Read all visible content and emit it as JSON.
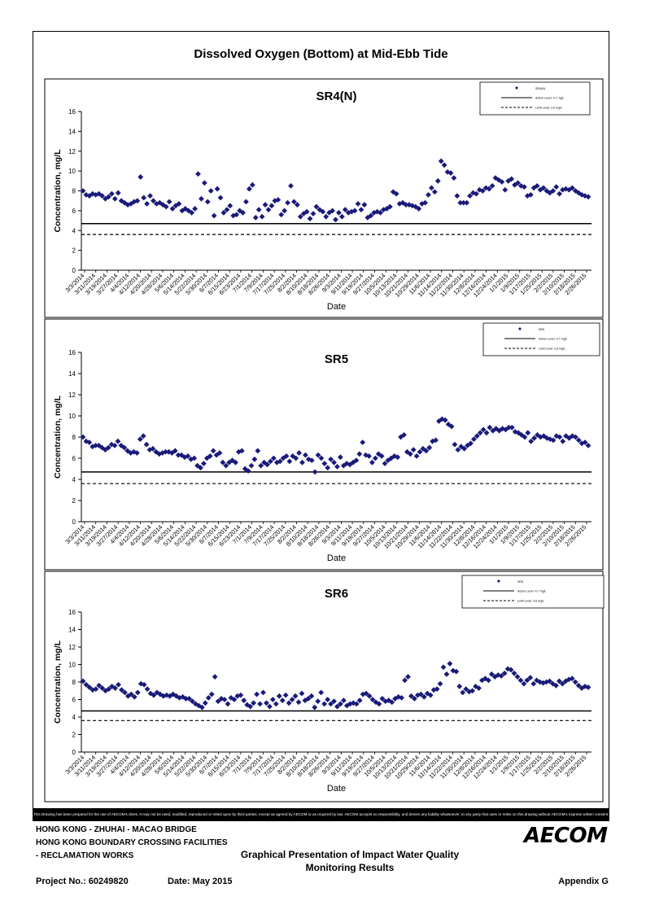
{
  "page": {
    "title": "Dissolved Oxygen (Bottom) at Mid-Ebb Tide",
    "disclaimer": "This Drawing has been prepared for the use of AECOM's client. It may not be used, modified, reproduced or relied upon by third parties, except as agreed by AECOM or as required by law. AECOM accepts no responsibility, and denies any liability whatsoever, to any party that uses or relies on this drawing without AECOM's express written consent.",
    "footer": {
      "line1": "HONG KONG - ZHUHAI - MACAO BRIDGE",
      "line2": "HONG KONG BOUNDARY CROSSING FACILITIES",
      "line3": "- RECLAMATION WORKS",
      "center1": "Graphical Presentation of Impact Water Quality",
      "center2": "Monitoring Results",
      "project": "Project No.: 60249820",
      "date": "Date: May 2015",
      "appendix": "Appendix G",
      "logo": "AECOM"
    }
  },
  "chart_data": [
    {
      "type": "scatter",
      "title": "SR4(N)",
      "xlabel": "Date",
      "ylabel": "Concentration, mg/L",
      "ylim": [
        0,
        16
      ],
      "yticks": [
        0,
        2,
        4,
        6,
        8,
        10,
        12,
        14,
        16
      ],
      "xticks": [
        "3/3/2014",
        "3/11/2014",
        "3/19/2014",
        "3/27/2014",
        "4/4/2014",
        "4/12/2014",
        "4/20/2014",
        "4/28/2014",
        "5/6/2014",
        "5/14/2014",
        "5/22/2014",
        "5/30/2014",
        "6/7/2014",
        "6/15/2014",
        "6/23/2014",
        "7/1/2014",
        "7/9/2014",
        "7/17/2014",
        "7/25/2014",
        "8/2/2014",
        "8/10/2014",
        "8/18/2014",
        "8/26/2014",
        "9/3/2014",
        "9/11/2014",
        "9/19/2014",
        "9/27/2014",
        "10/5/2014",
        "10/13/2014",
        "10/21/2014",
        "10/29/2014",
        "11/6/2014",
        "11/14/2014",
        "11/22/2014",
        "11/30/2014",
        "12/8/2014",
        "12/16/2014",
        "12/24/2014",
        "1/1/2015",
        "1/9/2015",
        "1/17/2015",
        "1/25/2015",
        "2/2/2015",
        "2/10/2015",
        "2/18/2015",
        "2/26/2015"
      ],
      "action_level": 4.7,
      "limit_level": 3.6,
      "legend": [
        "SR4(N)",
        "Action Level: 4.7 mg/L",
        "Limit Level: 3.6 mg/L"
      ],
      "legend_position": "top-right",
      "series": [
        {
          "name": "SR4(N)",
          "values": [
            8.0,
            7.6,
            7.5,
            7.7,
            7.6,
            7.7,
            7.5,
            7.2,
            7.4,
            7.7,
            7.2,
            7.8,
            7.0,
            6.8,
            6.6,
            6.7,
            6.9,
            7.0,
            9.4,
            7.3,
            6.7,
            7.5,
            7.0,
            6.7,
            6.8,
            6.6,
            6.4,
            6.9,
            6.2,
            6.5,
            6.7,
            6.0,
            6.2,
            6.0,
            5.8,
            6.2,
            9.7,
            7.2,
            8.8,
            6.9,
            8.0,
            5.5,
            8.2,
            7.3,
            5.8,
            6.1,
            6.5,
            5.5,
            5.6,
            6.0,
            5.8,
            6.9,
            8.2,
            8.6,
            5.3,
            6.1,
            5.4,
            6.6,
            6.1,
            6.5,
            7.0,
            7.1,
            5.6,
            6.0,
            6.8,
            8.5,
            6.9,
            6.6,
            5.4,
            5.7,
            5.9,
            5.2,
            5.7,
            6.4,
            6.1,
            5.9,
            5.4,
            5.8,
            6.0,
            5.1,
            5.8,
            5.4,
            6.1,
            5.8,
            5.9,
            6.0,
            6.7,
            6.1,
            6.6,
            5.3,
            5.5,
            5.8,
            5.9,
            5.8,
            6.1,
            6.2,
            6.4,
            7.9,
            7.7,
            6.7,
            6.8,
            6.6,
            6.6,
            6.5,
            6.4,
            6.2,
            6.7,
            6.8,
            7.6,
            8.3,
            7.9,
            9.0,
            11.0,
            10.6,
            9.9,
            9.8,
            9.3,
            7.5,
            6.8,
            6.8,
            6.8,
            7.5,
            7.8,
            7.7,
            8.1,
            8.0,
            8.3,
            8.2,
            8.5,
            9.3,
            9.1,
            8.9,
            8.1,
            9.0,
            9.2,
            8.6,
            8.8,
            8.5,
            8.4,
            7.5,
            7.6,
            8.3,
            8.5,
            8.1,
            8.3,
            8.0,
            7.8,
            8.0,
            8.4,
            7.7,
            8.1,
            8.2,
            8.1,
            8.3,
            8.0,
            7.8,
            7.6,
            7.5,
            7.4
          ]
        }
      ]
    },
    {
      "type": "scatter",
      "title": "SR5",
      "xlabel": "Date",
      "ylabel": "Concentration, mg/L",
      "ylim": [
        0,
        16
      ],
      "yticks": [
        0,
        2,
        4,
        6,
        8,
        10,
        12,
        14,
        16
      ],
      "xticks": [
        "3/3/2014",
        "3/11/2014",
        "3/19/2014",
        "3/27/2014",
        "4/4/2014",
        "4/12/2014",
        "4/20/2014",
        "4/28/2014",
        "5/6/2014",
        "5/14/2014",
        "5/22/2014",
        "5/30/2014",
        "6/7/2014",
        "6/15/2014",
        "6/23/2014",
        "7/1/2014",
        "7/9/2014",
        "7/17/2014",
        "7/25/2014",
        "8/2/2014",
        "8/10/2014",
        "8/18/2014",
        "8/26/2014",
        "9/3/2014",
        "9/11/2014",
        "9/19/2014",
        "9/27/2014",
        "10/5/2014",
        "10/13/2014",
        "10/21/2014",
        "10/29/2014",
        "11/6/2014",
        "11/14/2014",
        "11/22/2014",
        "11/30/2014",
        "12/8/2014",
        "12/16/2014",
        "12/24/2014",
        "1/1/2015",
        "1/9/2015",
        "1/17/2015",
        "1/25/2015",
        "2/2/2015",
        "2/10/2015",
        "2/18/2015",
        "2/26/2015"
      ],
      "action_level": 4.7,
      "limit_level": 3.6,
      "legend": [
        "SR5",
        "Action Level: 4.7 mg/L",
        "Limit Level: 3.6 mg/L"
      ],
      "legend_position": "top-right",
      "series": [
        {
          "name": "SR5",
          "values": [
            8.0,
            7.6,
            7.5,
            7.1,
            7.2,
            7.2,
            7.0,
            6.8,
            7.0,
            7.3,
            7.2,
            7.6,
            7.2,
            7.0,
            6.7,
            6.5,
            6.6,
            6.5,
            7.8,
            8.1,
            7.3,
            6.8,
            6.9,
            6.6,
            6.4,
            6.5,
            6.6,
            6.6,
            6.5,
            6.7,
            6.3,
            6.3,
            6.1,
            6.2,
            5.9,
            6.0,
            5.3,
            5.1,
            5.5,
            6.0,
            6.2,
            6.7,
            6.3,
            6.5,
            5.6,
            5.3,
            5.6,
            5.8,
            5.6,
            6.6,
            6.7,
            5.0,
            4.8,
            5.3,
            5.9,
            6.7,
            5.3,
            5.6,
            5.4,
            5.7,
            6.0,
            5.6,
            5.7,
            6.0,
            6.2,
            5.7,
            6.2,
            6.0,
            6.5,
            5.6,
            6.3,
            5.9,
            5.8,
            4.7,
            6.3,
            6.0,
            5.5,
            5.1,
            5.9,
            5.6,
            5.2,
            6.1,
            5.3,
            5.5,
            5.4,
            5.6,
            5.8,
            6.4,
            7.5,
            6.3,
            6.2,
            5.6,
            6.0,
            6.4,
            6.2,
            5.5,
            5.8,
            6.0,
            6.2,
            6.1,
            8.0,
            8.2,
            6.6,
            6.4,
            6.8,
            6.2,
            6.6,
            6.9,
            6.7,
            7.0,
            7.6,
            7.7,
            9.5,
            9.7,
            9.6,
            9.2,
            9.0,
            7.3,
            6.8,
            7.1,
            6.9,
            7.2,
            7.4,
            7.8,
            8.1,
            8.4,
            8.7,
            8.4,
            8.9,
            8.6,
            8.8,
            8.6,
            8.8,
            8.7,
            8.9,
            8.9,
            8.5,
            8.4,
            8.2,
            8.0,
            8.4,
            7.6,
            7.9,
            8.2,
            8.0,
            8.1,
            7.9,
            7.8,
            7.7,
            8.1,
            8.0,
            7.6,
            8.1,
            7.9,
            8.1,
            8.0,
            7.7,
            7.4,
            7.5,
            7.2
          ]
        }
      ]
    },
    {
      "type": "scatter",
      "title": "SR6",
      "xlabel": "Date",
      "ylabel": "Concentration, mg/L",
      "ylim": [
        0,
        16
      ],
      "yticks": [
        0,
        2,
        4,
        6,
        8,
        10,
        12,
        14,
        16
      ],
      "xticks": [
        "3/3/2014",
        "3/11/2014",
        "3/19/2014",
        "3/27/2014",
        "4/4/2014",
        "4/12/2014",
        "4/20/2014",
        "4/28/2014",
        "5/6/2014",
        "5/14/2014",
        "5/22/2014",
        "5/30/2014",
        "6/7/2014",
        "6/15/2014",
        "6/23/2014",
        "7/1/2014",
        "7/9/2014",
        "7/17/2014",
        "7/25/2014",
        "8/2/2014",
        "8/10/2014",
        "8/18/2014",
        "8/26/2014",
        "9/3/2014",
        "9/11/2014",
        "9/19/2014",
        "9/27/2014",
        "10/5/2014",
        "10/13/2014",
        "10/21/2014",
        "10/29/2014",
        "11/6/2014",
        "11/14/2014",
        "11/22/2014",
        "11/30/2014",
        "12/8/2014",
        "12/16/2014",
        "12/24/2014",
        "1/1/2015",
        "1/9/2015",
        "1/17/2015",
        "1/25/2015",
        "2/2/2015",
        "2/10/2015",
        "2/18/2015",
        "2/26/2015"
      ],
      "action_level": 4.7,
      "limit_level": 3.6,
      "legend": [
        "SR6",
        "Action Level: 4.7 mg/L",
        "Limit Level: 3.6 mg/L"
      ],
      "legend_position": "top-right",
      "series": [
        {
          "name": "SR6",
          "values": [
            8.1,
            7.7,
            7.4,
            7.1,
            7.2,
            7.6,
            7.3,
            7.0,
            7.2,
            7.5,
            7.3,
            7.7,
            7.1,
            6.8,
            6.4,
            6.6,
            6.3,
            6.8,
            7.8,
            7.7,
            7.2,
            6.7,
            6.5,
            6.8,
            6.6,
            6.4,
            6.5,
            6.4,
            6.6,
            6.4,
            6.2,
            6.3,
            6.1,
            6.1,
            5.8,
            5.5,
            5.3,
            5.1,
            5.6,
            6.2,
            6.6,
            8.6,
            5.8,
            6.1,
            6.0,
            5.5,
            6.2,
            6.0,
            6.4,
            6.5,
            5.9,
            5.4,
            5.2,
            5.6,
            6.6,
            5.5,
            6.8,
            5.6,
            5.2,
            6.0,
            5.5,
            6.4,
            5.9,
            6.5,
            5.6,
            6.0,
            6.4,
            5.7,
            6.7,
            5.9,
            6.1,
            6.4,
            5.1,
            5.8,
            6.8,
            5.5,
            6.0,
            5.5,
            5.8,
            5.2,
            5.5,
            5.9,
            5.3,
            5.5,
            5.6,
            5.5,
            5.9,
            6.6,
            6.7,
            6.4,
            6.0,
            5.7,
            5.5,
            6.1,
            5.8,
            5.9,
            5.7,
            6.1,
            6.3,
            6.2,
            8.2,
            8.6,
            6.4,
            6.1,
            6.5,
            6.6,
            6.3,
            6.7,
            6.5,
            7.1,
            7.2,
            7.8,
            9.7,
            8.9,
            10.1,
            9.3,
            9.2,
            7.5,
            6.8,
            7.2,
            6.9,
            7.0,
            7.5,
            7.3,
            8.2,
            8.4,
            8.2,
            8.9,
            8.6,
            8.8,
            8.7,
            9.0,
            9.5,
            9.4,
            9.0,
            8.6,
            8.2,
            7.8,
            8.2,
            8.5,
            7.8,
            8.2,
            8.0,
            7.9,
            8.0,
            8.1,
            7.8,
            7.6,
            8.1,
            7.8,
            8.1,
            8.3,
            8.4,
            8.0,
            7.6,
            7.3,
            7.5,
            7.4
          ]
        }
      ]
    }
  ]
}
